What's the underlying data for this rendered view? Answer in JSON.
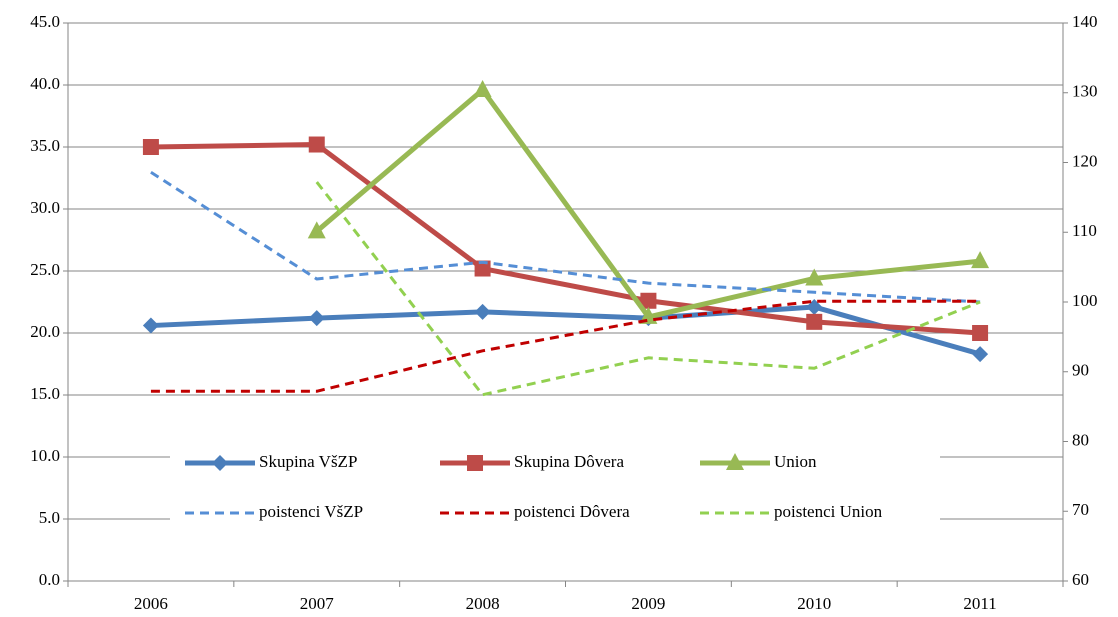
{
  "chart_data": {
    "type": "line",
    "categories": [
      "2006",
      "2007",
      "2008",
      "2009",
      "2010",
      "2011"
    ],
    "series": [
      {
        "name": "Skupina VšZP",
        "color": "#4a7ebb",
        "marker": "diamond",
        "dash": false,
        "values": [
          20.6,
          21.2,
          21.7,
          21.2,
          22.1,
          18.3
        ]
      },
      {
        "name": "Skupina Dôvera",
        "color": "#be4b48",
        "marker": "square",
        "dash": false,
        "values": [
          35.0,
          35.2,
          25.2,
          22.6,
          20.9,
          20.0
        ]
      },
      {
        "name": "Union",
        "color": "#98b954",
        "marker": "triangle",
        "dash": false,
        "values": [
          null,
          28.2,
          39.6,
          21.3,
          24.4,
          25.8
        ]
      },
      {
        "name": "poistenci VšZP",
        "color": "#558ed5",
        "dash": true,
        "axis": "y2",
        "values": [
          118.6,
          103.3,
          105.7,
          102.7,
          101.4,
          100.0
        ]
      },
      {
        "name": "poistenci Dôvera",
        "color": "#c00000",
        "dash": true,
        "axis": "y2",
        "values": [
          87.2,
          87.2,
          93.0,
          97.4,
          100.1,
          100.1
        ]
      },
      {
        "name": "poistenci Union",
        "color": "#92d050",
        "dash": true,
        "axis": "y2",
        "values": [
          null,
          117.2,
          86.7,
          92.0,
          90.5,
          100.0
        ]
      }
    ],
    "ylim": [
      0,
      45
    ],
    "yticks": [
      {
        "value": 0,
        "label": "0.0"
      },
      {
        "value": 5,
        "label": "5.0"
      },
      {
        "value": 10,
        "label": "10.0"
      },
      {
        "value": 15,
        "label": "15.0"
      },
      {
        "value": 20,
        "label": "20.0"
      },
      {
        "value": 25,
        "label": "25.0"
      },
      {
        "value": 30,
        "label": "30.0"
      },
      {
        "value": 35,
        "label": "35.0"
      },
      {
        "value": 40,
        "label": "40.0"
      },
      {
        "value": 45,
        "label": "45.0"
      }
    ],
    "y2lim": [
      60,
      140
    ],
    "y2ticks": [
      60,
      70,
      80,
      90,
      100,
      110,
      120,
      130,
      140
    ],
    "grid": true,
    "legend": "bottom-center"
  }
}
